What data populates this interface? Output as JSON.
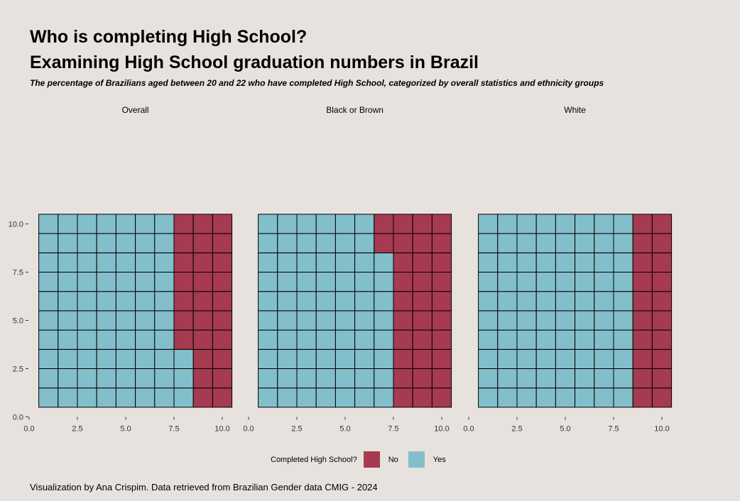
{
  "title_line1": "Who is completing High School?",
  "title_line2": "Examining High School graduation numbers in Brazil",
  "subtitle": "The percentage of Brazilians aged between 20 and 22 who have completed High School, categorized by overall statistics and ethnicity groups",
  "caption": "Visualization by Ana Crispim. Data retrieved from Brazilian Gender data CMIG - 2024",
  "colors": {
    "background": "#e8e2df",
    "no": "#a63a50",
    "yes": "#82bfca",
    "grid_line": "#000000"
  },
  "legend": {
    "title": "Completed High School?",
    "items": [
      {
        "label": "No",
        "color": "#a63a50"
      },
      {
        "label": "Yes",
        "color": "#82bfca"
      }
    ]
  },
  "chart_data": {
    "type": "waffle",
    "grid": {
      "columns": 10,
      "rows": 10
    },
    "fill_order": "column-wise from left, bottom to top",
    "xlim": [
      0,
      10.5
    ],
    "ylim": [
      0,
      10.5
    ],
    "x_ticks": [
      "0.0",
      "2.5",
      "5.0",
      "7.5",
      "10.0"
    ],
    "y_ticks": [
      "0.0",
      "2.5",
      "5.0",
      "7.5",
      "10.0"
    ],
    "panels": [
      {
        "name": "Overall",
        "yes": 73,
        "no": 27
      },
      {
        "name": "Black or Brown",
        "yes": 68,
        "no": 32
      },
      {
        "name": "White",
        "yes": 80,
        "no": 20
      }
    ]
  }
}
